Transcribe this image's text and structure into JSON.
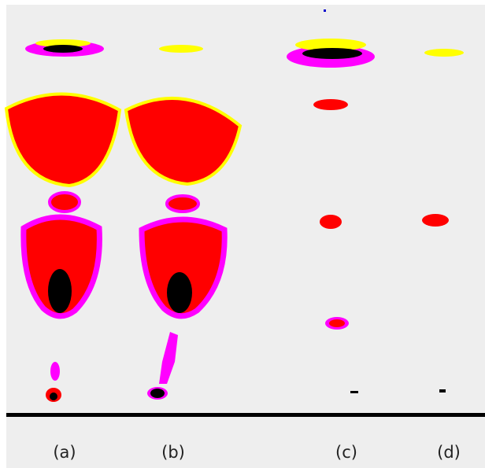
{
  "lanes": [
    {
      "label": "(a)"
    },
    {
      "label": "(b)"
    },
    {
      "label": "(c)"
    },
    {
      "label": "(d)"
    }
  ]
}
